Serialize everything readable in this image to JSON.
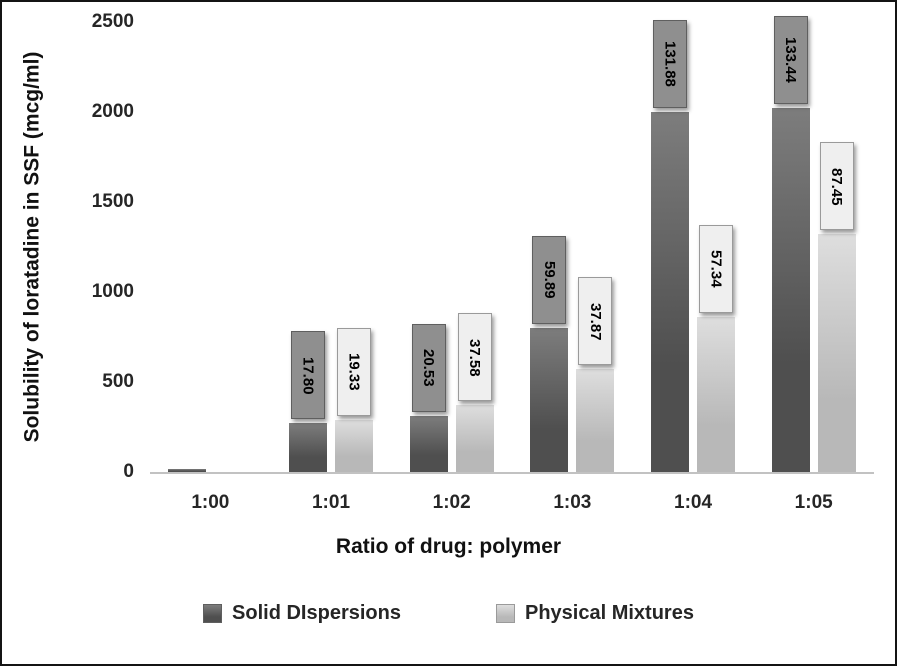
{
  "chart_data": {
    "type": "bar",
    "xlabel": "Ratio of drug: polymer",
    "ylabel": "Solubility of loratadine in SSF (mcg/ml)",
    "ylim": [
      0,
      2500
    ],
    "yticks": [
      0,
      500,
      1000,
      1500,
      2000,
      2500
    ],
    "categories": [
      "1:00",
      "1:01",
      "1:02",
      "1:03",
      "1:04",
      "1:05"
    ],
    "grid": false,
    "legend_position": "bottom",
    "axis_line_color": "#c2c2c2",
    "series": [
      {
        "name": "Solid DIspersions",
        "color": "#4f4f4f",
        "color_light": "#7d7d7d",
        "label_box_fill": "#8f8f8f",
        "label_box_border": "#5f5f5f",
        "values": [
          15,
          270,
          310,
          800,
          2000,
          2020
        ],
        "data_labels": [
          "",
          "17.80",
          "20.53",
          "59.89",
          "131.88",
          "133.44"
        ]
      },
      {
        "name": "Physical Mixtures",
        "color": "#b8b8b8",
        "color_light": "#dedede",
        "label_box_fill": "#efefef",
        "label_box_border": "#9a9a9a",
        "values": [
          0,
          290,
          370,
          570,
          860,
          1320
        ],
        "data_labels": [
          "",
          "19.33",
          "37.58",
          "37.87",
          "57.34",
          "87.45"
        ]
      }
    ]
  }
}
